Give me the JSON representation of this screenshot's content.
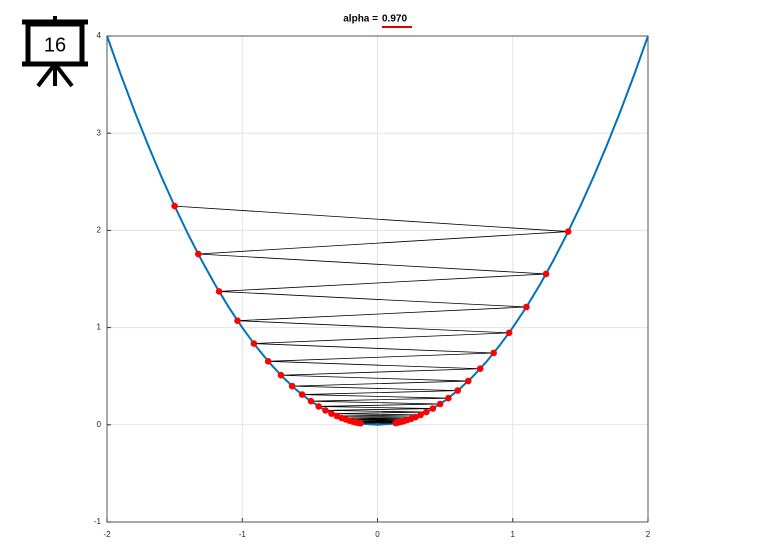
{
  "slide_number": "16",
  "chart_data": {
    "type": "line",
    "title_prefix": "alpha =",
    "alpha": "0.970",
    "xlim": [
      -2,
      2
    ],
    "ylim": [
      -1,
      4
    ],
    "xticks": [
      -2,
      -1,
      0,
      1,
      2
    ],
    "yticks": [
      -1,
      0,
      1,
      2,
      3,
      4
    ],
    "grid": true,
    "curve": {
      "color": "#0072bd",
      "x": [
        -2,
        -1.9,
        -1.8,
        -1.7,
        -1.6,
        -1.5,
        -1.4,
        -1.3,
        -1.2,
        -1.1,
        -1,
        -0.9,
        -0.8,
        -0.7,
        -0.6,
        -0.5,
        -0.4,
        -0.3,
        -0.2,
        -0.1,
        0,
        0.1,
        0.2,
        0.3,
        0.4,
        0.5,
        0.6,
        0.7,
        0.8,
        0.9,
        1,
        1.1,
        1.2,
        1.3,
        1.4,
        1.5,
        1.6,
        1.7,
        1.8,
        1.9,
        2
      ],
      "y": [
        4,
        3.61,
        3.24,
        2.89,
        2.56,
        2.25,
        1.96,
        1.69,
        1.44,
        1.21,
        1,
        0.81,
        0.64,
        0.49,
        0.36,
        0.25,
        0.16,
        0.09,
        0.04,
        0.01,
        0,
        0.01,
        0.04,
        0.09,
        0.16,
        0.25,
        0.36,
        0.49,
        0.64,
        0.81,
        1,
        1.21,
        1.44,
        1.69,
        1.96,
        2.25,
        2.56,
        2.89,
        3.24,
        3.61,
        4
      ]
    },
    "iterates": {
      "color": "#ff0000",
      "line_color": "#000000",
      "x": [
        -1.5,
        1.41,
        -1.325,
        1.246,
        -1.171,
        1.101,
        -1.035,
        0.973,
        -0.914,
        0.859,
        -0.808,
        0.759,
        -0.714,
        0.671,
        -0.631,
        0.593,
        -0.557,
        0.524,
        -0.492,
        0.463,
        -0.435,
        0.409,
        -0.385,
        0.361,
        -0.34,
        0.319,
        -0.3,
        0.282,
        -0.265,
        0.249,
        -0.234,
        0.22,
        -0.207,
        0.195,
        -0.183,
        0.172,
        -0.162,
        0.152,
        -0.143,
        0.134,
        -0.126
      ],
      "y": [
        2.25,
        1.988,
        1.757,
        1.552,
        1.372,
        1.212,
        1.071,
        0.946,
        0.836,
        0.739,
        0.653,
        0.577,
        0.51,
        0.45,
        0.398,
        0.352,
        0.311,
        0.274,
        0.243,
        0.214,
        0.189,
        0.167,
        0.148,
        0.131,
        0.115,
        0.102,
        0.09,
        0.08,
        0.07,
        0.062,
        0.055,
        0.049,
        0.043,
        0.038,
        0.033,
        0.03,
        0.026,
        0.023,
        0.02,
        0.018,
        0.016
      ]
    }
  }
}
